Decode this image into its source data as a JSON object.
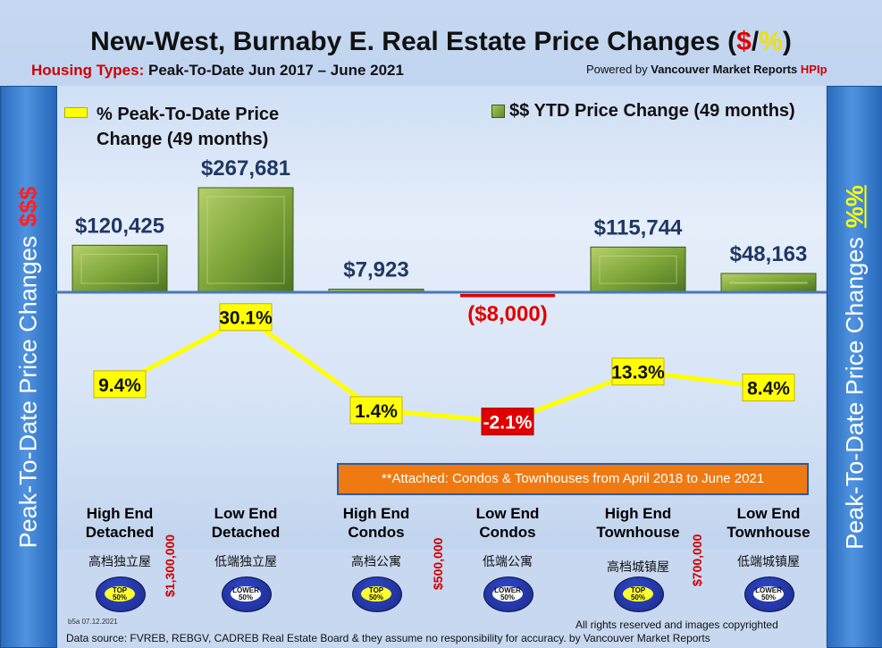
{
  "title": {
    "main": "New-West, Burnaby E. Real Estate Price Changes (",
    "dollar": "$",
    "slash": "/",
    "pct": "%",
    "close": ")"
  },
  "subtitle": {
    "lead": "Housing Types:",
    "rest": "Peak-To-Date Jun 2017 – June 2021"
  },
  "powered": {
    "prefix": "Powered by",
    "brand": "Vancouver Market Reports",
    "hpi": "HPIp"
  },
  "side_left": {
    "text": "Peak-To-Date Price Changes",
    "accent": "$$$"
  },
  "side_right": {
    "text": "Peak-To-Date  Price  Changes",
    "accent": "%%"
  },
  "legend": {
    "line_label_1": "% Peak-To-Date Price",
    "line_label_2": "Change (49 months)",
    "bar_label": "$$ YTD Price Change (49 months)"
  },
  "note": "**Attached: Condos & Townhouses from April 2018 to June 2021",
  "chart_data": {
    "type": "bar",
    "categories": [
      "High End Detached",
      "Low End Detached",
      "High End Condos",
      "Low End Condos",
      "High End Townhouse",
      "Low End Townhouse"
    ],
    "series": [
      {
        "name": "$$ YTD Price Change (49 months)",
        "type": "bar",
        "values": [
          120425,
          267681,
          7923,
          -8000,
          115744,
          48163
        ],
        "labels": [
          "$120,425",
          "$267,681",
          "$7,923",
          "($8,000)",
          "$115,744",
          "$48,163"
        ]
      },
      {
        "name": "% Peak-To-Date Price Change (49 months)",
        "type": "line",
        "values": [
          9.4,
          30.1,
          1.4,
          -2.1,
          13.3,
          8.4
        ],
        "labels": [
          "9.4%",
          "30.1%",
          "1.4%",
          "-2.1%",
          "13.3%",
          "8.4%"
        ]
      }
    ],
    "colors": {
      "bar": "#7fa63a",
      "line": "#ffff00",
      "negative": "#e00000"
    }
  },
  "categories_display": [
    {
      "l1": "High End",
      "l2": "Detached",
      "cn": "高档独立屋",
      "badge": "TOP 50%"
    },
    {
      "l1": "Low End",
      "l2": "Detached",
      "cn": "低端独立屋",
      "badge": "LOWER 50%"
    },
    {
      "l1": "High End",
      "l2": "Condos",
      "cn": "高档公寓",
      "badge": "TOP 50%"
    },
    {
      "l1": "Low End",
      "l2": "Condos",
      "cn": "低端公寓",
      "badge": "LOWER 50%"
    },
    {
      "l1": "High End",
      "l2": "Townhouse",
      "cn": "高档城镇屋",
      "badge": "TOP 50%"
    },
    {
      "l1": "Low End",
      "l2": "Townhouse",
      "cn": "低端城镇屋",
      "badge": "LOWER 50%"
    }
  ],
  "thresholds": [
    "$1,300,000",
    "$500,000",
    "$700,000"
  ],
  "footer": {
    "stamp": "b5a 07.12.2021",
    "rights": "All rights reserved and  images copyrighted",
    "source": "Data source: FVREB, REBGV, CADREB Real Estate Board & they assume no responsibility for accuracy. by Vancouver Market Reports"
  }
}
